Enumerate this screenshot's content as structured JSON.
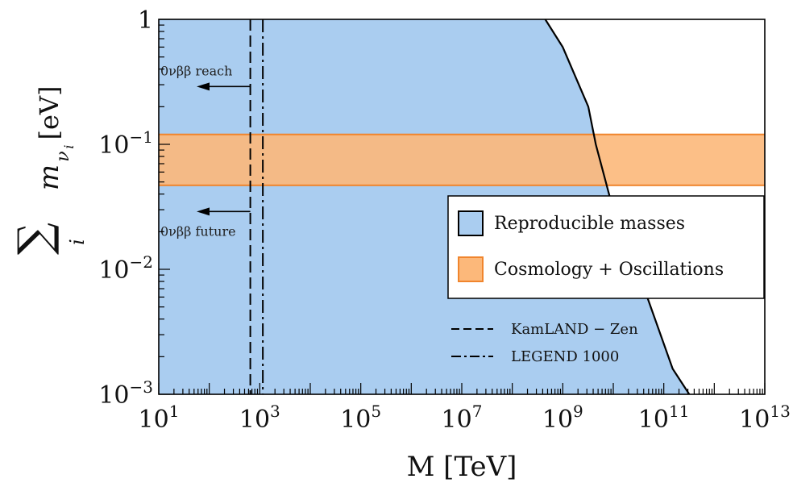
{
  "chart_data": {
    "type": "area",
    "x_scale": "log",
    "y_scale": "log",
    "xlim": [
      10,
      10000000000000
    ],
    "ylim": [
      0.001,
      1
    ],
    "xlabel": "M [TeV]",
    "ylabel": "∑ m_{ν_i} [eV]",
    "ylabel_parts": {
      "sum": "∑",
      "sum_index": "i",
      "var": "m",
      "sub": "ν",
      "subsub": "i",
      "unit": "[eV]"
    },
    "x_ticks": [
      {
        "value": 10,
        "base": "10",
        "exp": "1"
      },
      {
        "value": 1000,
        "base": "10",
        "exp": "3"
      },
      {
        "value": 100000,
        "base": "10",
        "exp": "5"
      },
      {
        "value": 10000000,
        "base": "10",
        "exp": "7"
      },
      {
        "value": 1000000000,
        "base": "10",
        "exp": "9"
      },
      {
        "value": 100000000000,
        "base": "10",
        "exp": "11"
      },
      {
        "value": 10000000000000,
        "base": "10",
        "exp": "13"
      }
    ],
    "y_ticks": [
      {
        "value": 1,
        "base": "1",
        "exp": ""
      },
      {
        "value": 0.1,
        "base": "10",
        "exp": "−1"
      },
      {
        "value": 0.01,
        "base": "10",
        "exp": "−2"
      },
      {
        "value": 0.001,
        "base": "10",
        "exp": "−3"
      }
    ],
    "reproducible_region": {
      "name": "Reproducible masses",
      "color": "#aacdf0",
      "edge_color": "#000000",
      "boundary": [
        {
          "x": 450000000,
          "y": 1
        },
        {
          "x": 1000000000,
          "y": 0.6
        },
        {
          "x": 3200000000,
          "y": 0.2
        },
        {
          "x": 4500000000,
          "y": 0.1
        },
        {
          "x": 9000000000,
          "y": 0.035
        },
        {
          "x": 30000000000,
          "y": 0.01
        },
        {
          "x": 150000000000,
          "y": 0.0016
        },
        {
          "x": 320000000000,
          "y": 0.001
        }
      ]
    },
    "cosmology_band": {
      "name": "Cosmology + Oscillations",
      "color": "#fcb87a",
      "edge_color": "#f0852d",
      "y_range": [
        0.047,
        0.12
      ]
    },
    "vertical_lines": [
      {
        "name": "KamLAND − Zen",
        "x": 650,
        "style": "dashed"
      },
      {
        "name": "LEGEND 1000",
        "x": 1150,
        "style": "dashdot"
      }
    ],
    "annotations": [
      {
        "text": "0νββ reach",
        "y": 0.29
      },
      {
        "text": "0νββ future",
        "y": 0.029
      }
    ],
    "legend": {
      "placement": "right",
      "entries": [
        "Reproducible masses",
        "Cosmology + Oscillations"
      ],
      "line_entries": [
        "KamLAND − Zen",
        "LEGEND 1000"
      ]
    },
    "colors": {
      "blue_fill": "#aacdf0",
      "orange_fill": "#fcb87a",
      "orange_edge": "#f0852d"
    }
  }
}
